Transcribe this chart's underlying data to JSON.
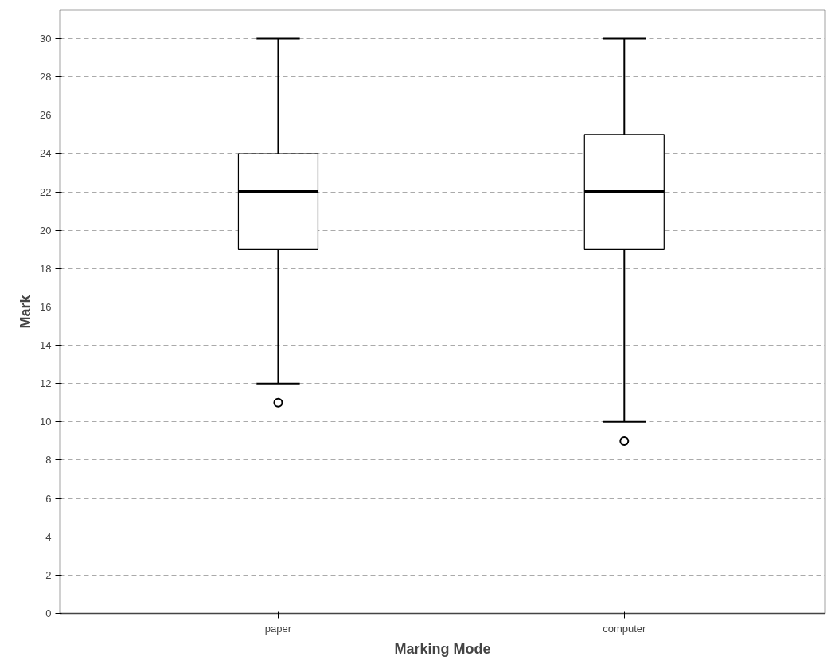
{
  "chart_data": {
    "type": "box",
    "xlabel": "Marking Mode",
    "ylabel": "Mark",
    "categories": [
      "paper",
      "computer"
    ],
    "boxes": [
      {
        "low": 12,
        "q1": 19,
        "median": 22,
        "q3": 24,
        "high": 30,
        "outliers": [
          11
        ]
      },
      {
        "low": 10,
        "q1": 19,
        "median": 22,
        "q3": 25,
        "high": 30,
        "outliers": [
          9
        ]
      }
    ],
    "ylim": [
      0,
      31.5
    ],
    "yticks": [
      0,
      2,
      4,
      6,
      8,
      10,
      12,
      14,
      16,
      18,
      20,
      22,
      24,
      26,
      28,
      30
    ],
    "grid": "y"
  }
}
